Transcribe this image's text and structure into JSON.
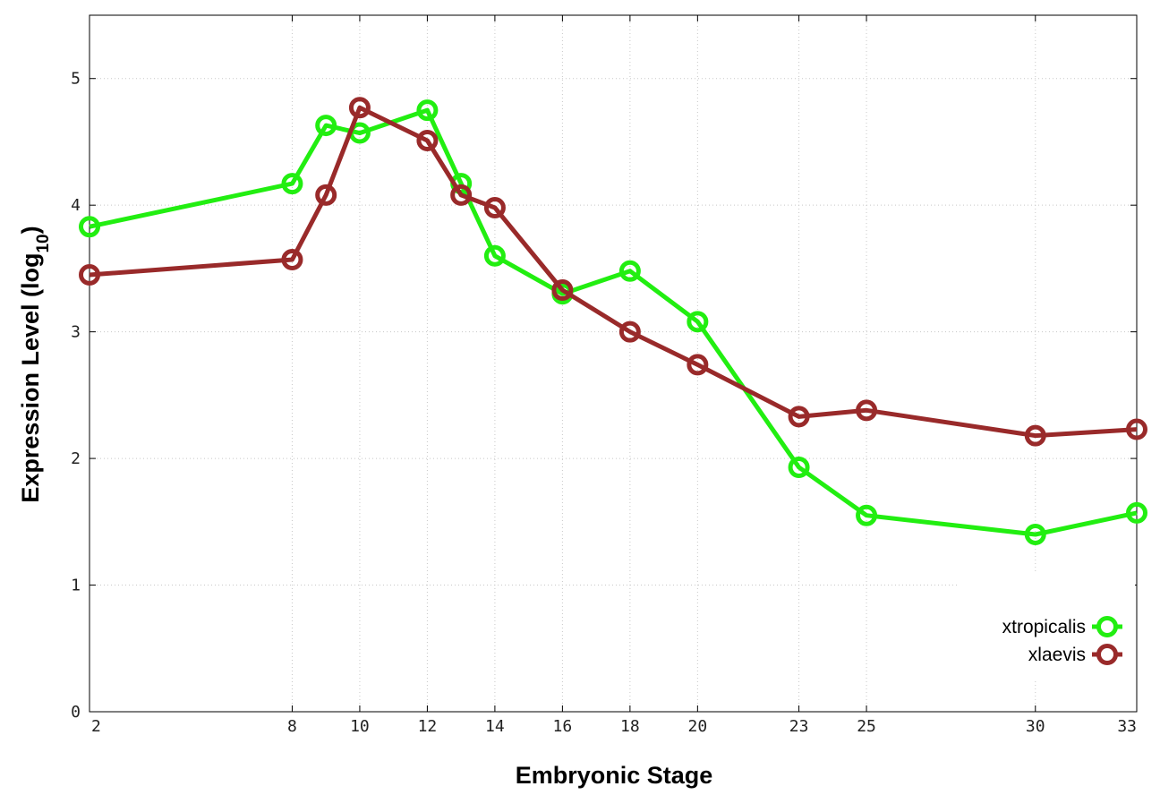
{
  "chart_data": {
    "type": "line",
    "xlabel": "Embryonic Stage",
    "ylabel": "Expression Level (log",
    "ylabel_subscript": "10",
    "ylabel_suffix": ")",
    "x_ticks": [
      2,
      8,
      10,
      12,
      14,
      16,
      18,
      20,
      23,
      25,
      30,
      33
    ],
    "x_tick_labels": [
      "2",
      "8",
      "10",
      "12",
      "14",
      "16",
      "18",
      "20",
      "23",
      "25",
      "30",
      "33"
    ],
    "y_ticks": [
      0,
      1,
      2,
      3,
      4,
      5
    ],
    "y_tick_labels": [
      "0",
      "1",
      "2",
      "3",
      "4",
      "5"
    ],
    "ylim": [
      0,
      5.5
    ],
    "grid": true,
    "legend_position": "bottom-right",
    "series": [
      {
        "name": "xtropicalis",
        "color": "#22ee11",
        "marker": "circle",
        "x": [
          2,
          8,
          9,
          10,
          12,
          13,
          14,
          16,
          18,
          20,
          23,
          25,
          30,
          33
        ],
        "y": [
          3.83,
          4.17,
          4.63,
          4.57,
          4.75,
          4.17,
          3.6,
          3.3,
          3.48,
          3.08,
          1.93,
          1.55,
          1.4,
          1.57
        ]
      },
      {
        "name": "xlaevis",
        "color": "#992a2a",
        "marker": "circle",
        "x": [
          2,
          8,
          9,
          10,
          12,
          13,
          14,
          16,
          18,
          20,
          23,
          25,
          30,
          33
        ],
        "y": [
          3.45,
          3.57,
          4.08,
          4.77,
          4.51,
          4.08,
          3.98,
          3.33,
          3.0,
          2.74,
          2.33,
          2.38,
          2.18,
          2.23
        ]
      }
    ]
  }
}
